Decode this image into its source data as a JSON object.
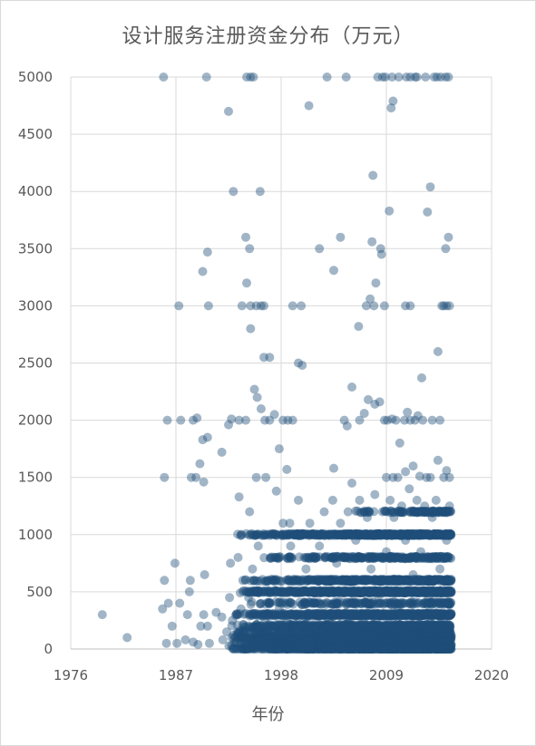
{
  "chart_data": {
    "type": "scatter",
    "title": "设计服务注册资金分布（万元）",
    "xlabel": "年份",
    "ylabel": "",
    "xlim": [
      1976,
      2020
    ],
    "ylim": [
      0,
      5000
    ],
    "x_ticks": [
      "1976",
      "1987",
      "1998",
      "2009",
      "2020"
    ],
    "y_ticks": [
      "0",
      "500",
      "1000",
      "1500",
      "2000",
      "2500",
      "3000",
      "3500",
      "4000",
      "4500",
      "5000"
    ],
    "grid": true,
    "legend": "none",
    "marker_color": "#1f4e79",
    "marker_opacity": 0.42,
    "series": [
      {
        "points": [
          [
            1979.3,
            300
          ],
          [
            1981.9,
            100
          ],
          [
            1985.6,
            350
          ],
          [
            1985.8,
            600
          ],
          [
            1986.0,
            50
          ],
          [
            1986.2,
            400
          ],
          [
            1986.6,
            200
          ],
          [
            1986.9,
            750
          ],
          [
            1987.1,
            50
          ],
          [
            1987.4,
            400
          ],
          [
            1988.0,
            80
          ],
          [
            1988.2,
            300
          ],
          [
            1988.4,
            500
          ],
          [
            1988.5,
            600
          ],
          [
            1988.8,
            60
          ],
          [
            1989.3,
            40
          ],
          [
            1989.6,
            200
          ],
          [
            1989.9,
            300
          ],
          [
            1990.0,
            650
          ],
          [
            1990.3,
            200
          ],
          [
            1990.5,
            50
          ],
          [
            1991.2,
            320
          ],
          [
            1991.8,
            280
          ],
          [
            1991.9,
            80
          ],
          [
            1992.3,
            150
          ],
          [
            1992.6,
            450
          ],
          [
            1992.7,
            750
          ],
          [
            1992.8,
            30
          ],
          [
            1992.9,
            250
          ],
          [
            1993.0,
            120
          ],
          [
            1993.3,
            60
          ],
          [
            1993.5,
            800
          ],
          [
            1993.8,
            350
          ],
          [
            1994.0,
            600
          ],
          [
            1994.2,
            50
          ],
          [
            1994.6,
            450
          ],
          [
            1995.0,
            700
          ],
          [
            1995.3,
            150
          ],
          [
            1995.6,
            900
          ],
          [
            1995.9,
            400
          ],
          [
            1996.3,
            250
          ],
          [
            1996.7,
            600
          ],
          [
            1997.0,
            100
          ],
          [
            1997.4,
            800
          ],
          [
            1997.8,
            350
          ],
          [
            1998.2,
            1100
          ],
          [
            1998.6,
            250
          ],
          [
            1999.0,
            900
          ],
          [
            1999.4,
            500
          ],
          [
            1999.8,
            1300
          ],
          [
            2000.2,
            150
          ],
          [
            2000.6,
            700
          ],
          [
            2001.0,
            1100
          ],
          [
            2001.5,
            400
          ],
          [
            2002.0,
            900
          ],
          [
            2002.5,
            1200
          ],
          [
            2003.0,
            250
          ],
          [
            2003.4,
            1300
          ],
          [
            2003.8,
            750
          ],
          [
            2004.2,
            1100
          ],
          [
            2004.6,
            500
          ],
          [
            2005.0,
            1200
          ],
          [
            2005.4,
            1450
          ],
          [
            2005.8,
            950
          ],
          [
            2006.2,
            1300
          ],
          [
            2006.6,
            250
          ],
          [
            2007.0,
            1150
          ],
          [
            2007.4,
            700
          ],
          [
            2007.8,
            1350
          ],
          [
            2008.2,
            450
          ],
          [
            2008.6,
            1200
          ],
          [
            2009.0,
            850
          ],
          [
            2009.4,
            1300
          ],
          [
            2009.8,
            1150
          ],
          [
            2010.2,
            350
          ],
          [
            2010.6,
            1250
          ],
          [
            2011.0,
            950
          ],
          [
            2011.4,
            1400
          ],
          [
            2011.8,
            650
          ],
          [
            2012.2,
            1300
          ],
          [
            2012.6,
            850
          ],
          [
            2013.0,
            1250
          ],
          [
            2013.4,
            450
          ],
          [
            2013.8,
            1150
          ],
          [
            2014.2,
            1300
          ],
          [
            2014.6,
            700
          ],
          [
            2015.0,
            1200
          ],
          [
            2015.3,
            950
          ],
          [
            2015.6,
            1250
          ],
          [
            1986.1,
            2000
          ],
          [
            1987.5,
            2000
          ],
          [
            1988.8,
            2000
          ],
          [
            1989.2,
            2020
          ],
          [
            1989.8,
            1830
          ],
          [
            1990.3,
            1850
          ],
          [
            1988.6,
            1500
          ],
          [
            1989.1,
            1500
          ],
          [
            1989.5,
            1620
          ],
          [
            1989.9,
            1460
          ],
          [
            1985.8,
            1500
          ],
          [
            1990.4,
            3000
          ],
          [
            1989.8,
            3300
          ],
          [
            1990.3,
            3470
          ],
          [
            1987.3,
            3000
          ],
          [
            1985.7,
            5000
          ],
          [
            1990.2,
            5000
          ],
          [
            1991.8,
            1720
          ],
          [
            1992.5,
            1960
          ],
          [
            1992.8,
            2010
          ],
          [
            1993.6,
            2000
          ],
          [
            1994.3,
            2000
          ],
          [
            1995.2,
            2270
          ],
          [
            1995.5,
            2200
          ],
          [
            1995.9,
            2100
          ],
          [
            1996.3,
            2000
          ],
          [
            1996.8,
            2000
          ],
          [
            1997.3,
            2050
          ],
          [
            1998.2,
            2000
          ],
          [
            1998.7,
            2000
          ],
          [
            1999.2,
            2000
          ],
          [
            2000.2,
            2480
          ],
          [
            1996.8,
            2550
          ],
          [
            1997.8,
            1750
          ],
          [
            1998.6,
            1570
          ],
          [
            1993.6,
            1330
          ],
          [
            1994.7,
            1200
          ],
          [
            1995.4,
            1500
          ],
          [
            1996.4,
            1500
          ],
          [
            1997.5,
            1380
          ],
          [
            1998.9,
            1100
          ],
          [
            1992.5,
            4700
          ],
          [
            1993.0,
            4000
          ],
          [
            1994.3,
            3600
          ],
          [
            1994.7,
            3500
          ],
          [
            1994.4,
            3200
          ],
          [
            1993.9,
            3000
          ],
          [
            1994.8,
            3000
          ],
          [
            1995.4,
            3000
          ],
          [
            1995.9,
            3000
          ],
          [
            1996.2,
            3000
          ],
          [
            1994.8,
            2800
          ],
          [
            1995.8,
            4000
          ],
          [
            1996.2,
            2550
          ],
          [
            1994.4,
            5000
          ],
          [
            1994.8,
            5000
          ],
          [
            1995.1,
            5000
          ],
          [
            1999.2,
            3000
          ],
          [
            2000.1,
            3000
          ],
          [
            1999.8,
            2500
          ],
          [
            2002.0,
            3500
          ],
          [
            2003.5,
            3310
          ],
          [
            2004.2,
            3600
          ],
          [
            2000.9,
            4750
          ],
          [
            2002.8,
            5000
          ],
          [
            2004.8,
            5000
          ],
          [
            2003.5,
            1580
          ],
          [
            2004.6,
            2000
          ],
          [
            2004.9,
            1950
          ],
          [
            2005.4,
            2290
          ],
          [
            2006.2,
            2000
          ],
          [
            2006.7,
            2060
          ],
          [
            2007.1,
            2180
          ],
          [
            2007.8,
            2140
          ],
          [
            2008.3,
            2160
          ],
          [
            2008.8,
            2000
          ],
          [
            2009.1,
            2000
          ],
          [
            2009.6,
            2010
          ],
          [
            2010.0,
            2000
          ],
          [
            2010.4,
            1800
          ],
          [
            2010.9,
            2000
          ],
          [
            2011.2,
            2070
          ],
          [
            2011.5,
            2000
          ],
          [
            2012.0,
            2000
          ],
          [
            2012.3,
            2040
          ],
          [
            2012.8,
            2000
          ],
          [
            2006.1,
            2820
          ],
          [
            2006.9,
            3000
          ],
          [
            2007.3,
            3060
          ],
          [
            2007.7,
            3000
          ],
          [
            2007.9,
            3200
          ],
          [
            2008.4,
            3500
          ],
          [
            2008.5,
            3450
          ],
          [
            2008.8,
            3000
          ],
          [
            2007.5,
            3560
          ],
          [
            2007.6,
            4140
          ],
          [
            2009.3,
            3830
          ],
          [
            2009.5,
            4730
          ],
          [
            2009.7,
            4790
          ],
          [
            2008.1,
            5000
          ],
          [
            2008.6,
            5000
          ],
          [
            2008.9,
            5000
          ],
          [
            2009.6,
            5000
          ],
          [
            2010.3,
            5000
          ],
          [
            2011.1,
            5000
          ],
          [
            2011.5,
            5000
          ],
          [
            2012.0,
            5000
          ],
          [
            2012.2,
            5000
          ],
          [
            2013.1,
            5000
          ],
          [
            2014.0,
            5000
          ],
          [
            2014.3,
            5000
          ],
          [
            2014.7,
            5000
          ],
          [
            2015.2,
            5000
          ],
          [
            2015.5,
            5000
          ],
          [
            2011.0,
            3000
          ],
          [
            2011.5,
            3000
          ],
          [
            2012.7,
            2370
          ],
          [
            2013.3,
            3820
          ],
          [
            2013.6,
            4040
          ],
          [
            2014.4,
            2600
          ],
          [
            2014.8,
            3000
          ],
          [
            2015.0,
            3000
          ],
          [
            2015.3,
            3000
          ],
          [
            2015.2,
            3500
          ],
          [
            2015.5,
            3600
          ],
          [
            2015.6,
            3000
          ],
          [
            2009.0,
            1500
          ],
          [
            2009.7,
            1500
          ],
          [
            2010.2,
            1500
          ],
          [
            2011.0,
            1550
          ],
          [
            2011.8,
            1600
          ],
          [
            2012.5,
            1510
          ],
          [
            2013.2,
            1500
          ],
          [
            2013.6,
            1500
          ],
          [
            2014.4,
            1650
          ],
          [
            2015.0,
            1500
          ],
          [
            2015.3,
            1560
          ],
          [
            2015.6,
            1500
          ],
          [
            2013.8,
            2000
          ],
          [
            2014.6,
            2000
          ]
        ],
        "dense_columns": [
          {
            "x_from": 1992.4,
            "x_to": 2015.8,
            "y": 0,
            "spread": 40,
            "count": 900
          },
          {
            "x_from": 1992.4,
            "x_to": 2015.8,
            "y": 30,
            "spread": 30,
            "count": 300
          },
          {
            "x_from": 1992.6,
            "x_to": 2015.8,
            "y": 50,
            "spread": 20,
            "count": 500
          },
          {
            "x_from": 1992.5,
            "x_to": 2015.8,
            "y": 100,
            "spread": 20,
            "count": 800
          },
          {
            "x_from": 1992.6,
            "x_to": 2015.8,
            "y": 150,
            "spread": 18,
            "count": 350
          },
          {
            "x_from": 1992.7,
            "x_to": 2015.8,
            "y": 200,
            "spread": 15,
            "count": 550
          },
          {
            "x_from": 1992.7,
            "x_to": 2015.8,
            "y": 300,
            "spread": 12,
            "count": 700
          },
          {
            "x_from": 1994.5,
            "x_to": 2015.8,
            "y": 400,
            "spread": 12,
            "count": 200
          },
          {
            "x_from": 1993.3,
            "x_to": 2015.8,
            "y": 500,
            "spread": 10,
            "count": 750
          },
          {
            "x_from": 1994.0,
            "x_to": 2015.8,
            "y": 600,
            "spread": 10,
            "count": 400
          },
          {
            "x_from": 1995.6,
            "x_to": 2015.8,
            "y": 800,
            "spread": 10,
            "count": 250
          },
          {
            "x_from": 1993.4,
            "x_to": 2015.8,
            "y": 1000,
            "spread": 8,
            "count": 600
          },
          {
            "x_from": 2005.5,
            "x_to": 2015.8,
            "y": 1200,
            "spread": 8,
            "count": 120
          }
        ]
      }
    ]
  }
}
